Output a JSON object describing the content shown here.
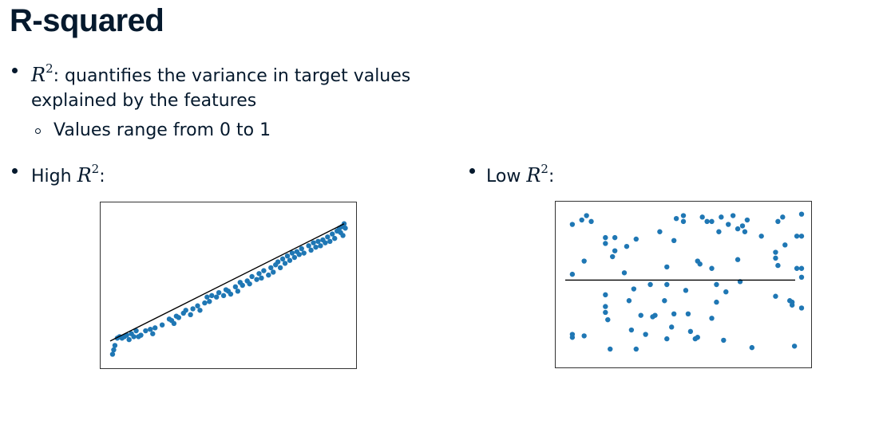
{
  "slide": {
    "title": "R-squared",
    "bullet1_math_base": "R",
    "bullet1_math_sup": "2",
    "bullet1_text_line1": ": quantifies the variance in target values",
    "bullet1_text_line2": "explained by the features",
    "sub_bullet_text": "Values range from 0 to 1",
    "high_label": "High ",
    "high_math_base": "R",
    "high_math_sup": "2",
    "high_colon": ":",
    "low_label": "Low ",
    "low_math_base": "R",
    "low_math_sup": "2",
    "low_colon": ":"
  },
  "chart_data": [
    {
      "type": "scatter",
      "name": "high-r2",
      "point_color": "#1f77b4",
      "line_color": "#000000",
      "xlim": [
        0,
        10
      ],
      "ylim": [
        0,
        10
      ],
      "axes_ticks": "hidden",
      "points": [
        [
          0.1,
          0.3
        ],
        [
          0.15,
          0.6
        ],
        [
          0.2,
          0.9
        ],
        [
          0.3,
          1.4
        ],
        [
          0.4,
          1.5
        ],
        [
          0.5,
          1.4
        ],
        [
          0.6,
          1.5
        ],
        [
          0.7,
          1.6
        ],
        [
          0.8,
          1.3
        ],
        [
          0.9,
          1.7
        ],
        [
          1.0,
          1.5
        ],
        [
          1.1,
          1.9
        ],
        [
          1.2,
          1.5
        ],
        [
          1.3,
          1.6
        ],
        [
          1.5,
          1.9
        ],
        [
          1.7,
          2.0
        ],
        [
          1.8,
          1.7
        ],
        [
          1.9,
          2.1
        ],
        [
          2.2,
          2.3
        ],
        [
          2.5,
          2.7
        ],
        [
          2.6,
          2.6
        ],
        [
          2.7,
          2.4
        ],
        [
          2.8,
          2.9
        ],
        [
          2.9,
          2.8
        ],
        [
          3.1,
          3.1
        ],
        [
          3.2,
          3.3
        ],
        [
          3.4,
          3.0
        ],
        [
          3.5,
          3.4
        ],
        [
          3.7,
          3.6
        ],
        [
          3.8,
          3.3
        ],
        [
          4.0,
          3.8
        ],
        [
          4.1,
          4.2
        ],
        [
          4.2,
          3.9
        ],
        [
          4.3,
          4.3
        ],
        [
          4.5,
          4.2
        ],
        [
          4.6,
          4.5
        ],
        [
          4.8,
          4.3
        ],
        [
          4.9,
          4.7
        ],
        [
          5.0,
          4.6
        ],
        [
          5.1,
          4.4
        ],
        [
          5.3,
          4.9
        ],
        [
          5.4,
          4.6
        ],
        [
          5.5,
          5.2
        ],
        [
          5.6,
          5.0
        ],
        [
          5.8,
          5.3
        ],
        [
          5.9,
          5.1
        ],
        [
          6.0,
          5.6
        ],
        [
          6.2,
          5.4
        ],
        [
          6.3,
          5.8
        ],
        [
          6.4,
          5.5
        ],
        [
          6.5,
          6.0
        ],
        [
          6.7,
          5.7
        ],
        [
          6.8,
          6.2
        ],
        [
          6.9,
          5.9
        ],
        [
          7.0,
          6.4
        ],
        [
          7.1,
          6.6
        ],
        [
          7.2,
          6.2
        ],
        [
          7.3,
          6.8
        ],
        [
          7.4,
          6.5
        ],
        [
          7.5,
          7.0
        ],
        [
          7.6,
          6.7
        ],
        [
          7.7,
          7.2
        ],
        [
          7.8,
          6.9
        ],
        [
          7.9,
          7.3
        ],
        [
          8.0,
          7.1
        ],
        [
          8.1,
          7.5
        ],
        [
          8.2,
          7.2
        ],
        [
          8.4,
          7.7
        ],
        [
          8.5,
          7.4
        ],
        [
          8.6,
          7.9
        ],
        [
          8.7,
          7.6
        ],
        [
          8.8,
          8.0
        ],
        [
          8.9,
          7.7
        ],
        [
          9.0,
          8.1
        ],
        [
          9.1,
          7.9
        ],
        [
          9.2,
          8.3
        ],
        [
          9.3,
          8.0
        ],
        [
          9.4,
          8.5
        ],
        [
          9.5,
          8.2
        ],
        [
          9.6,
          8.7
        ],
        [
          9.7,
          8.9
        ],
        [
          9.75,
          8.6
        ],
        [
          9.8,
          9.0
        ],
        [
          9.85,
          8.4
        ],
        [
          9.9,
          9.2
        ],
        [
          9.95,
          8.9
        ]
      ],
      "fit_line": [
        [
          0.0,
          1.2
        ],
        [
          9.9,
          9.2
        ]
      ]
    },
    {
      "type": "scatter",
      "name": "low-r2",
      "point_color": "#1f77b4",
      "line_color": "#000000",
      "xlim": [
        0,
        10
      ],
      "ylim": [
        0,
        10
      ],
      "axes_ticks": "hidden",
      "points": [
        [
          0.3,
          9.1
        ],
        [
          0.3,
          5.7
        ],
        [
          0.3,
          1.6
        ],
        [
          0.3,
          1.4
        ],
        [
          0.7,
          9.4
        ],
        [
          0.8,
          6.6
        ],
        [
          0.8,
          1.5
        ],
        [
          0.9,
          9.7
        ],
        [
          1.1,
          9.3
        ],
        [
          1.7,
          8.2
        ],
        [
          1.7,
          7.8
        ],
        [
          1.7,
          4.3
        ],
        [
          1.7,
          3.5
        ],
        [
          1.7,
          3.1
        ],
        [
          1.8,
          2.6
        ],
        [
          1.9,
          0.6
        ],
        [
          2.0,
          6.9
        ],
        [
          2.1,
          7.3
        ],
        [
          2.1,
          8.2
        ],
        [
          2.5,
          5.8
        ],
        [
          2.6,
          7.6
        ],
        [
          2.7,
          3.9
        ],
        [
          2.8,
          1.9
        ],
        [
          2.9,
          4.7
        ],
        [
          3.0,
          0.6
        ],
        [
          3.0,
          8.1
        ],
        [
          3.2,
          2.9
        ],
        [
          3.4,
          1.6
        ],
        [
          3.6,
          5.0
        ],
        [
          3.7,
          2.8
        ],
        [
          3.8,
          2.9
        ],
        [
          4.0,
          8.6
        ],
        [
          4.2,
          3.9
        ],
        [
          4.3,
          1.3
        ],
        [
          4.3,
          6.2
        ],
        [
          4.3,
          5.0
        ],
        [
          4.5,
          2.1
        ],
        [
          4.6,
          3.0
        ],
        [
          4.6,
          8.0
        ],
        [
          4.7,
          9.5
        ],
        [
          5.0,
          9.3
        ],
        [
          5.0,
          9.7
        ],
        [
          5.1,
          4.6
        ],
        [
          5.2,
          3.0
        ],
        [
          5.3,
          1.8
        ],
        [
          5.5,
          1.3
        ],
        [
          5.6,
          6.6
        ],
        [
          5.6,
          1.4
        ],
        [
          5.7,
          6.4
        ],
        [
          5.8,
          9.6
        ],
        [
          6.0,
          9.3
        ],
        [
          6.2,
          6.1
        ],
        [
          6.2,
          9.3
        ],
        [
          6.2,
          2.7
        ],
        [
          6.4,
          5.0
        ],
        [
          6.4,
          3.8
        ],
        [
          6.5,
          8.6
        ],
        [
          6.6,
          9.6
        ],
        [
          6.7,
          1.2
        ],
        [
          6.8,
          4.5
        ],
        [
          6.9,
          9.1
        ],
        [
          7.1,
          9.7
        ],
        [
          7.3,
          6.7
        ],
        [
          7.3,
          8.8
        ],
        [
          7.4,
          5.2
        ],
        [
          7.5,
          9.0
        ],
        [
          7.6,
          8.6
        ],
        [
          7.7,
          9.4
        ],
        [
          7.9,
          0.7
        ],
        [
          8.3,
          8.3
        ],
        [
          8.9,
          7.2
        ],
        [
          8.9,
          6.8
        ],
        [
          8.9,
          4.2
        ],
        [
          9.0,
          9.3
        ],
        [
          9.0,
          6.3
        ],
        [
          9.2,
          9.6
        ],
        [
          9.3,
          7.7
        ],
        [
          9.5,
          3.9
        ],
        [
          9.6,
          3.6
        ],
        [
          9.6,
          3.8
        ],
        [
          9.7,
          0.8
        ],
        [
          9.8,
          6.1
        ],
        [
          9.8,
          8.3
        ],
        [
          10.0,
          5.5
        ],
        [
          10.0,
          6.1
        ],
        [
          10.0,
          3.4
        ],
        [
          10.0,
          8.3
        ],
        [
          10.0,
          9.8
        ]
      ],
      "fit_line": [
        [
          0.0,
          5.3
        ],
        [
          10.0,
          5.3
        ]
      ]
    }
  ]
}
